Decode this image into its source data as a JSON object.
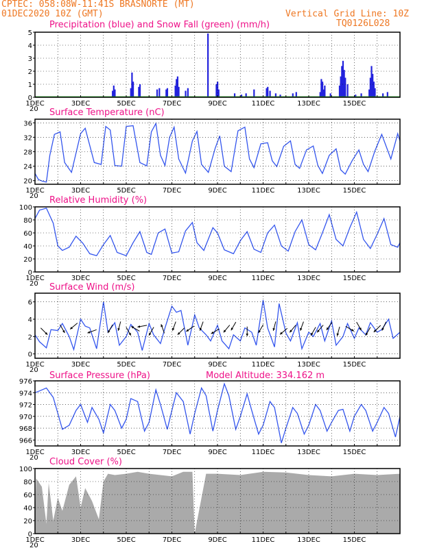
{
  "header": {
    "line1": "CPTEC:   058:08W-11:41S  BRASNORTE (MT)",
    "line2": "01DEC2020 10Z (GMT)",
    "grid_note": "Vertical Grid Line: 10Z",
    "code": "TQ0126L028"
  },
  "model_altitude": "Model Altitude: 334.162 m",
  "x_axis": {
    "labels": [
      "1DEC",
      "3DEC",
      "5DEC",
      "7DEC",
      "9DEC",
      "11DEC",
      "13DEC",
      "15DEC"
    ],
    "label_days": [
      0,
      2,
      4,
      6,
      8,
      10,
      12,
      14
    ],
    "year_stub": "20",
    "range_days": [
      0,
      16
    ]
  },
  "colors": {
    "precip": "#2222dd",
    "snow": "#22aa22",
    "line": "#3355ee",
    "cloud": "#aaaaaa",
    "title": "#ee1188",
    "header": "#ee7722"
  },
  "chart_data": [
    {
      "id": "precip",
      "type": "bar",
      "title": "Precipitation (blue) and Snow Fall (green) (mm/h)",
      "ylim": [
        0,
        5
      ],
      "yticks": [
        0,
        1,
        2,
        3,
        4,
        5
      ],
      "series": [
        {
          "name": "Precipitation",
          "points": [
            [
              3.4,
              0.5
            ],
            [
              3.45,
              0.9
            ],
            [
              3.5,
              0.6
            ],
            [
              4.2,
              0.7
            ],
            [
              4.25,
              1.9
            ],
            [
              4.3,
              1.2
            ],
            [
              4.55,
              0.8
            ],
            [
              4.6,
              1.0
            ],
            [
              5.35,
              0.6
            ],
            [
              5.45,
              0.7
            ],
            [
              5.75,
              0.6
            ],
            [
              5.8,
              0.7
            ],
            [
              6.15,
              0.9
            ],
            [
              6.2,
              1.4
            ],
            [
              6.25,
              1.6
            ],
            [
              6.3,
              0.8
            ],
            [
              6.6,
              0.5
            ],
            [
              6.7,
              0.7
            ],
            [
              7.58,
              4.9
            ],
            [
              7.95,
              1.0
            ],
            [
              8.0,
              1.2
            ],
            [
              8.05,
              0.6
            ],
            [
              8.75,
              0.3
            ],
            [
              9.05,
              0.2
            ],
            [
              9.25,
              0.3
            ],
            [
              9.6,
              0.6
            ],
            [
              10.15,
              0.7
            ],
            [
              10.2,
              0.8
            ],
            [
              10.3,
              0.5
            ],
            [
              10.55,
              0.3
            ],
            [
              10.75,
              0.2
            ],
            [
              11.3,
              0.3
            ],
            [
              11.45,
              0.4
            ],
            [
              12.5,
              0.4
            ],
            [
              12.55,
              1.4
            ],
            [
              12.6,
              1.2
            ],
            [
              12.65,
              0.6
            ],
            [
              12.7,
              0.9
            ],
            [
              12.95,
              0.3
            ],
            [
              13.35,
              0.9
            ],
            [
              13.4,
              1.6
            ],
            [
              13.45,
              2.4
            ],
            [
              13.5,
              2.8
            ],
            [
              13.55,
              2.1
            ],
            [
              13.6,
              1.5
            ],
            [
              13.7,
              1.0
            ],
            [
              14.05,
              0.2
            ],
            [
              14.3,
              0.3
            ],
            [
              14.65,
              0.6
            ],
            [
              14.7,
              1.5
            ],
            [
              14.75,
              2.4
            ],
            [
              14.8,
              1.8
            ],
            [
              14.85,
              1.2
            ],
            [
              14.9,
              0.7
            ],
            [
              15.25,
              0.3
            ],
            [
              15.45,
              0.4
            ]
          ]
        },
        {
          "name": "Snow Fall",
          "values": [
            0
          ]
        }
      ]
    },
    {
      "id": "temp",
      "type": "line",
      "title": "Surface Temperature (nC)",
      "ylim": [
        19,
        37
      ],
      "yticks": [
        20,
        24,
        28,
        32,
        36
      ],
      "series": [
        {
          "name": "Surface Temperature",
          "x": [
            0,
            0.15,
            0.35,
            0.5,
            0.65,
            0.85,
            1.1,
            1.3,
            1.6,
            2.0,
            2.2,
            2.6,
            2.9,
            3.1,
            3.3,
            3.5,
            3.8,
            4.0,
            4.3,
            4.6,
            4.9,
            5.1,
            5.3,
            5.5,
            5.7,
            5.9,
            6.1,
            6.3,
            6.6,
            6.9,
            7.1,
            7.3,
            7.6,
            7.9,
            8.1,
            8.3,
            8.6,
            8.9,
            9.2,
            9.4,
            9.6,
            9.9,
            10.2,
            10.4,
            10.6,
            10.9,
            11.2,
            11.4,
            11.6,
            11.9,
            12.2,
            12.4,
            12.6,
            12.9,
            13.2,
            13.4,
            13.6,
            13.9,
            14.2,
            14.4,
            14.6,
            14.9,
            15.2,
            15.6,
            15.9,
            16.0
          ],
          "y": [
            22.0,
            20.3,
            19.8,
            19.6,
            27.0,
            32.8,
            33.5,
            25.0,
            22.3,
            33.0,
            34.5,
            25.0,
            24.5,
            35.0,
            34.0,
            24.2,
            24.0,
            35.0,
            35.2,
            25.0,
            24.1,
            33.5,
            35.8,
            27.0,
            24.2,
            32.0,
            34.8,
            26.0,
            22.1,
            31.0,
            33.6,
            24.5,
            22.3,
            29.0,
            32.4,
            24.0,
            22.5,
            33.8,
            34.8,
            26.0,
            23.6,
            30.2,
            30.5,
            25.5,
            23.9,
            29.5,
            31.0,
            24.5,
            23.4,
            28.5,
            29.6,
            24.2,
            22.0,
            27.0,
            28.8,
            23.0,
            21.8,
            25.5,
            28.5,
            24.5,
            22.5,
            28.2,
            32.8,
            26.0,
            33.0,
            31.0
          ]
        }
      ]
    },
    {
      "id": "rh",
      "type": "line",
      "title": "Relative Humidity (%)",
      "ylim": [
        0,
        100
      ],
      "yticks": [
        0,
        20,
        40,
        60,
        80,
        100
      ],
      "series": [
        {
          "name": "Relative Humidity",
          "x": [
            0,
            0.2,
            0.5,
            0.8,
            1.0,
            1.2,
            1.5,
            1.8,
            2.1,
            2.4,
            2.7,
            3.0,
            3.3,
            3.6,
            4.0,
            4.3,
            4.6,
            4.9,
            5.1,
            5.4,
            5.7,
            6.0,
            6.3,
            6.6,
            6.9,
            7.1,
            7.4,
            7.8,
            8.0,
            8.3,
            8.7,
            9.0,
            9.3,
            9.6,
            9.9,
            10.2,
            10.5,
            10.8,
            11.1,
            11.4,
            11.7,
            12.0,
            12.3,
            12.6,
            12.9,
            13.2,
            13.5,
            13.8,
            14.1,
            14.4,
            14.7,
            15.0,
            15.3,
            15.6,
            15.9,
            16.0
          ],
          "y": [
            82,
            95,
            98,
            75,
            40,
            33,
            38,
            55,
            44,
            28,
            25,
            42,
            56,
            30,
            25,
            45,
            62,
            30,
            27,
            60,
            66,
            29,
            31,
            63,
            76,
            45,
            33,
            68,
            60,
            34,
            28,
            48,
            62,
            35,
            30,
            60,
            72,
            40,
            32,
            62,
            80,
            42,
            34,
            60,
            88,
            50,
            40,
            68,
            92,
            50,
            36,
            58,
            82,
            42,
            38,
            45
          ]
        }
      ]
    },
    {
      "id": "wind",
      "type": "line",
      "title": "Surface Wind (m/s)",
      "ylim": [
        -0.5,
        7
      ],
      "yticks": [
        0,
        2,
        4,
        6
      ],
      "series": [
        {
          "name": "Surface Wind",
          "x": [
            0,
            0.2,
            0.5,
            0.7,
            1.0,
            1.2,
            1.5,
            1.7,
            2.0,
            2.2,
            2.4,
            2.7,
            3.0,
            3.2,
            3.5,
            3.7,
            4.0,
            4.2,
            4.5,
            4.7,
            5.0,
            5.2,
            5.5,
            5.7,
            6.0,
            6.2,
            6.4,
            6.7,
            7.0,
            7.2,
            7.5,
            7.7,
            8.0,
            8.2,
            8.5,
            8.7,
            9.0,
            9.2,
            9.5,
            9.7,
            10.0,
            10.2,
            10.5,
            10.7,
            11.0,
            11.2,
            11.5,
            11.7,
            12.0,
            12.2,
            12.5,
            12.7,
            13.0,
            13.2,
            13.5,
            13.7,
            14.0,
            14.2,
            14.5,
            14.7,
            15.0,
            15.2,
            15.5,
            15.7,
            16.0
          ],
          "y": [
            2.2,
            1.4,
            0.7,
            2.8,
            2.7,
            3.5,
            2.0,
            0.5,
            4.0,
            3.2,
            3.0,
            0.6,
            6.0,
            2.5,
            3.6,
            1.0,
            2.0,
            3.4,
            2.5,
            0.4,
            3.5,
            2.2,
            1.2,
            3.0,
            5.5,
            4.8,
            5.0,
            1.0,
            4.5,
            3.0,
            2.2,
            1.5,
            3.3,
            1.5,
            0.6,
            2.2,
            1.5,
            3.0,
            2.5,
            1.0,
            6.2,
            3.0,
            0.8,
            5.8,
            2.4,
            1.5,
            3.6,
            0.6,
            2.5,
            2.0,
            3.5,
            1.5,
            3.8,
            1.0,
            2.0,
            3.5,
            1.8,
            3.0,
            2.2,
            3.6,
            2.5,
            2.8,
            4.0,
            1.8,
            2.5
          ]
        },
        {
          "name": "Wind direction (deg toward)",
          "x": [
            0.4,
            1.2,
            1.7,
            2.5,
            3.3,
            3.7,
            4.1,
            4.4,
            4.7,
            5.1,
            5.6,
            6.1,
            6.4,
            6.8,
            7.3,
            7.9,
            8.4,
            8.7,
            9.3,
            9.9,
            10.5,
            10.9,
            11.3,
            11.7,
            12.2,
            12.5,
            12.9,
            13.3,
            13.8,
            14.2,
            14.6,
            15.0,
            15.3
          ],
          "dirs": [
            135,
            150,
            230,
            250,
            210,
            195,
            150,
            300,
            260,
            210,
            340,
            200,
            225,
            235,
            200,
            240,
            220,
            210,
            180,
            210,
            195,
            230,
            220,
            200,
            210,
            220,
            215,
            195,
            120,
            150,
            210,
            225,
            205
          ]
        }
      ]
    },
    {
      "id": "pres",
      "type": "line",
      "title": "Surface Pressure (hPa)",
      "ylim": [
        965,
        976
      ],
      "yticks": [
        966,
        968,
        970,
        972,
        974,
        976
      ],
      "series": [
        {
          "name": "Surface Pressure",
          "x": [
            0,
            0.2,
            0.5,
            0.8,
            1.0,
            1.2,
            1.5,
            1.8,
            2.0,
            2.3,
            2.5,
            2.8,
            3.0,
            3.3,
            3.5,
            3.8,
            4.0,
            4.2,
            4.5,
            4.8,
            5.0,
            5.3,
            5.5,
            5.8,
            6.0,
            6.2,
            6.5,
            6.8,
            7.0,
            7.3,
            7.5,
            7.8,
            8.0,
            8.3,
            8.5,
            8.8,
            9.0,
            9.3,
            9.5,
            9.8,
            10.0,
            10.3,
            10.5,
            10.8,
            11.0,
            11.3,
            11.5,
            11.8,
            12.0,
            12.3,
            12.5,
            12.8,
            13.0,
            13.3,
            13.5,
            13.8,
            14.0,
            14.3,
            14.5,
            14.8,
            15.0,
            15.3,
            15.5,
            15.8,
            16.0
          ],
          "y": [
            974.0,
            974.3,
            974.8,
            973.2,
            970.5,
            967.8,
            968.5,
            971.0,
            972.0,
            969.0,
            971.5,
            969.5,
            967.2,
            972.0,
            971.0,
            968.0,
            969.5,
            973.0,
            972.5,
            967.5,
            969.0,
            974.5,
            972.0,
            967.8,
            971.0,
            974.0,
            972.5,
            967.0,
            970.5,
            974.8,
            973.5,
            967.5,
            971.0,
            975.5,
            973.5,
            967.8,
            970.0,
            973.8,
            971.0,
            967.0,
            968.5,
            972.5,
            971.5,
            965.5,
            968.0,
            971.5,
            970.5,
            967.0,
            968.5,
            972.0,
            971.0,
            967.5,
            969.0,
            971.0,
            971.2,
            967.5,
            970.0,
            972.0,
            971.0,
            967.5,
            969.0,
            971.5,
            970.5,
            966.5,
            970.0
          ]
        }
      ]
    },
    {
      "id": "cloud",
      "type": "area",
      "title": "Cloud Cover (%)",
      "ylim": [
        0,
        100
      ],
      "yticks": [
        0,
        20,
        40,
        60,
        80,
        100
      ],
      "series": [
        {
          "name": "Cloud Cover",
          "x": [
            0,
            0.05,
            0.3,
            0.5,
            0.6,
            0.8,
            1.0,
            1.2,
            1.5,
            1.8,
            2.0,
            2.2,
            2.5,
            2.8,
            3.0,
            3.2,
            3.5,
            4.0,
            4.5,
            5.0,
            5.5,
            6.0,
            6.5,
            6.9,
            7.0,
            7.5,
            8.0,
            9.0,
            10.0,
            11.0,
            12.0,
            13.0,
            14.0,
            15.0,
            16.0
          ],
          "y": [
            25,
            85,
            72,
            15,
            78,
            20,
            55,
            35,
            75,
            88,
            40,
            70,
            50,
            22,
            80,
            92,
            90,
            92,
            95,
            92,
            90,
            88,
            95,
            95,
            0,
            92,
            92,
            90,
            95,
            94,
            90,
            88,
            92,
            90,
            92
          ]
        }
      ]
    }
  ]
}
